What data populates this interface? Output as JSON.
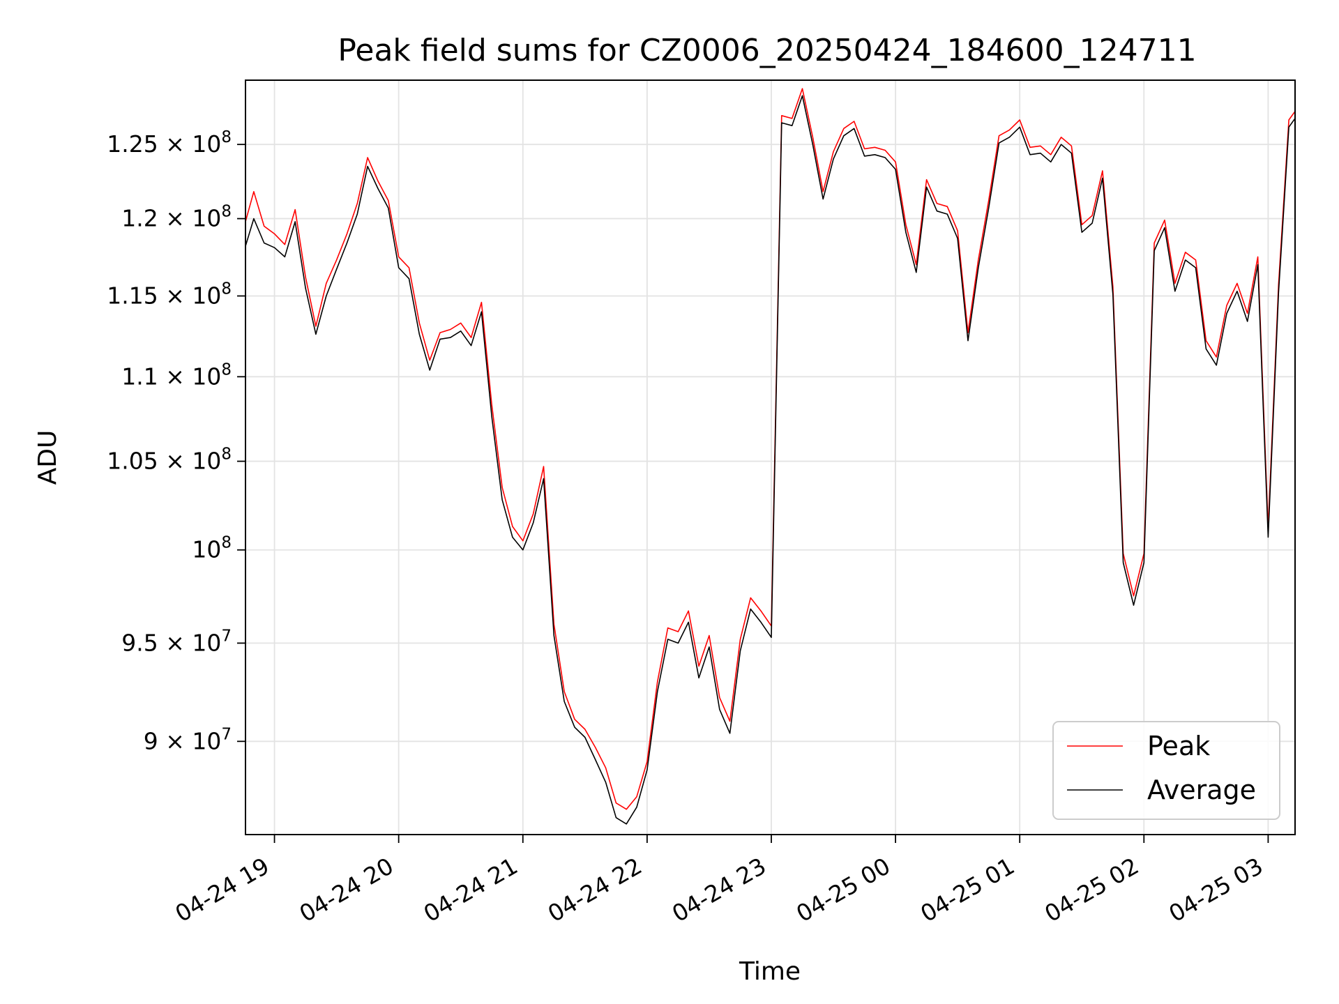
{
  "chart_data": {
    "type": "line",
    "title": "Peak field sums for CZ0006_20250424_184600_124711",
    "xlabel": "Time",
    "ylabel": "ADU",
    "y_scale": "log",
    "grid": true,
    "legend_placement": "lower-right",
    "xlim": [
      "2025-04-24 18:46",
      "2025-04-25 03:13"
    ],
    "ylim": [
      85500000,
      129500000
    ],
    "x_ticks": [
      {
        "value": "2025-04-24 19:00",
        "label": "04-24 19"
      },
      {
        "value": "2025-04-24 20:00",
        "label": "04-24 20"
      },
      {
        "value": "2025-04-24 21:00",
        "label": "04-24 21"
      },
      {
        "value": "2025-04-24 22:00",
        "label": "04-24 22"
      },
      {
        "value": "2025-04-24 23:00",
        "label": "04-24 23"
      },
      {
        "value": "2025-04-25 00:00",
        "label": "04-25 00"
      },
      {
        "value": "2025-04-25 01:00",
        "label": "04-25 01"
      },
      {
        "value": "2025-04-25 02:00",
        "label": "04-25 02"
      },
      {
        "value": "2025-04-25 03:00",
        "label": "04-25 03"
      }
    ],
    "y_ticks": [
      {
        "value": 90000000,
        "mantissa": "9",
        "exponent": "7",
        "label": "9 × 10^7"
      },
      {
        "value": 95000000,
        "mantissa": "9.5",
        "exponent": "7",
        "label": "9.5 × 10^7"
      },
      {
        "value": 100000000,
        "mantissa": "",
        "exponent": "8",
        "label": "10^8"
      },
      {
        "value": 105000000,
        "mantissa": "1.05",
        "exponent": "8",
        "label": "1.05 × 10^8"
      },
      {
        "value": 110000000,
        "mantissa": "1.1",
        "exponent": "8",
        "label": "1.1 × 10^8"
      },
      {
        "value": 115000000,
        "mantissa": "1.15",
        "exponent": "8",
        "label": "1.15 × 10^8"
      },
      {
        "value": 120000000,
        "mantissa": "1.2",
        "exponent": "8",
        "label": "1.2 × 10^8"
      },
      {
        "value": 125000000,
        "mantissa": "1.25",
        "exponent": "8",
        "label": "1.25 × 10^8"
      }
    ],
    "series": [
      {
        "name": "Peak",
        "color": "#ff0000",
        "points": [
          [
            "2025-04-24 18:46",
            119800000
          ],
          [
            "2025-04-24 18:50",
            121800000
          ],
          [
            "2025-04-24 18:55",
            119500000
          ],
          [
            "2025-04-24 19:00",
            119000000
          ],
          [
            "2025-04-24 19:05",
            118300000
          ],
          [
            "2025-04-24 19:10",
            120600000
          ],
          [
            "2025-04-24 19:15",
            116200000
          ],
          [
            "2025-04-24 19:20",
            113100000
          ],
          [
            "2025-04-24 19:25",
            115800000
          ],
          [
            "2025-04-24 19:30",
            117300000
          ],
          [
            "2025-04-24 19:35",
            119000000
          ],
          [
            "2025-04-24 19:40",
            121000000
          ],
          [
            "2025-04-24 19:45",
            124100000
          ],
          [
            "2025-04-24 19:50",
            122500000
          ],
          [
            "2025-04-24 19:55",
            121200000
          ],
          [
            "2025-04-24 20:00",
            117500000
          ],
          [
            "2025-04-24 20:05",
            116800000
          ],
          [
            "2025-04-24 20:10",
            113300000
          ],
          [
            "2025-04-24 20:15",
            111000000
          ],
          [
            "2025-04-24 20:20",
            112700000
          ],
          [
            "2025-04-24 20:25",
            112900000
          ],
          [
            "2025-04-24 20:30",
            113300000
          ],
          [
            "2025-04-24 20:35",
            112400000
          ],
          [
            "2025-04-24 20:40",
            114600000
          ],
          [
            "2025-04-24 20:45",
            108300000
          ],
          [
            "2025-04-24 20:50",
            103500000
          ],
          [
            "2025-04-24 20:55",
            101300000
          ],
          [
            "2025-04-24 21:00",
            100500000
          ],
          [
            "2025-04-24 21:05",
            102000000
          ],
          [
            "2025-04-24 21:10",
            104700000
          ],
          [
            "2025-04-24 21:15",
            96000000
          ],
          [
            "2025-04-24 21:20",
            92500000
          ],
          [
            "2025-04-24 21:25",
            91100000
          ],
          [
            "2025-04-24 21:30",
            90600000
          ],
          [
            "2025-04-24 21:35",
            89700000
          ],
          [
            "2025-04-24 21:40",
            88700000
          ],
          [
            "2025-04-24 21:45",
            87000000
          ],
          [
            "2025-04-24 21:50",
            86700000
          ],
          [
            "2025-04-24 21:55",
            87300000
          ],
          [
            "2025-04-24 22:00",
            89000000
          ],
          [
            "2025-04-24 22:05",
            93000000
          ],
          [
            "2025-04-24 22:10",
            95800000
          ],
          [
            "2025-04-24 22:15",
            95600000
          ],
          [
            "2025-04-24 22:20",
            96700000
          ],
          [
            "2025-04-24 22:25",
            93800000
          ],
          [
            "2025-04-24 22:30",
            95400000
          ],
          [
            "2025-04-24 22:35",
            92200000
          ],
          [
            "2025-04-24 22:40",
            91000000
          ],
          [
            "2025-04-24 22:45",
            95200000
          ],
          [
            "2025-04-24 22:50",
            97400000
          ],
          [
            "2025-04-24 22:55",
            96700000
          ],
          [
            "2025-04-24 23:00",
            95900000
          ],
          [
            "2025-04-24 23:05",
            127000000
          ],
          [
            "2025-04-24 23:10",
            126800000
          ],
          [
            "2025-04-24 23:15",
            128900000
          ],
          [
            "2025-04-24 23:20",
            125500000
          ],
          [
            "2025-04-24 23:25",
            121800000
          ],
          [
            "2025-04-24 23:30",
            124500000
          ],
          [
            "2025-04-24 23:35",
            126100000
          ],
          [
            "2025-04-24 23:40",
            126600000
          ],
          [
            "2025-04-24 23:45",
            124700000
          ],
          [
            "2025-04-24 23:50",
            124800000
          ],
          [
            "2025-04-24 23:55",
            124600000
          ],
          [
            "2025-04-25 00:00",
            123800000
          ],
          [
            "2025-04-25 00:05",
            119600000
          ],
          [
            "2025-04-25 00:10",
            117000000
          ],
          [
            "2025-04-25 00:15",
            122600000
          ],
          [
            "2025-04-25 00:20",
            121000000
          ],
          [
            "2025-04-25 00:25",
            120800000
          ],
          [
            "2025-04-25 00:30",
            119200000
          ],
          [
            "2025-04-25 00:35",
            112700000
          ],
          [
            "2025-04-25 00:40",
            117300000
          ],
          [
            "2025-04-25 00:45",
            121200000
          ],
          [
            "2025-04-25 00:50",
            125600000
          ],
          [
            "2025-04-25 00:55",
            126000000
          ],
          [
            "2025-04-25 01:00",
            126700000
          ],
          [
            "2025-04-25 01:05",
            124800000
          ],
          [
            "2025-04-25 01:10",
            124900000
          ],
          [
            "2025-04-25 01:15",
            124300000
          ],
          [
            "2025-04-25 01:20",
            125500000
          ],
          [
            "2025-04-25 01:25",
            124900000
          ],
          [
            "2025-04-25 01:30",
            119600000
          ],
          [
            "2025-04-25 01:35",
            120200000
          ],
          [
            "2025-04-25 01:40",
            123200000
          ],
          [
            "2025-04-25 01:45",
            115600000
          ],
          [
            "2025-04-25 01:50",
            99800000
          ],
          [
            "2025-04-25 01:55",
            97500000
          ],
          [
            "2025-04-25 02:00",
            99800000
          ],
          [
            "2025-04-25 02:05",
            118400000
          ],
          [
            "2025-04-25 02:10",
            119900000
          ],
          [
            "2025-04-25 02:15",
            115800000
          ],
          [
            "2025-04-25 02:20",
            117800000
          ],
          [
            "2025-04-25 02:25",
            117300000
          ],
          [
            "2025-04-25 02:30",
            112200000
          ],
          [
            "2025-04-25 02:35",
            111200000
          ],
          [
            "2025-04-25 02:40",
            114400000
          ],
          [
            "2025-04-25 02:45",
            115800000
          ],
          [
            "2025-04-25 02:50",
            113900000
          ],
          [
            "2025-04-25 02:55",
            117500000
          ],
          [
            "2025-04-25 03:00",
            101200000
          ],
          [
            "2025-04-25 03:05",
            115700000
          ],
          [
            "2025-04-25 03:10",
            126700000
          ],
          [
            "2025-04-25 03:13",
            127300000
          ]
        ]
      },
      {
        "name": "Average",
        "color": "#000000",
        "points": [
          [
            "2025-04-24 18:46",
            118200000
          ],
          [
            "2025-04-24 18:50",
            120000000
          ],
          [
            "2025-04-24 18:55",
            118400000
          ],
          [
            "2025-04-24 19:00",
            118100000
          ],
          [
            "2025-04-24 19:05",
            117500000
          ],
          [
            "2025-04-24 19:10",
            119800000
          ],
          [
            "2025-04-24 19:15",
            115500000
          ],
          [
            "2025-04-24 19:20",
            112600000
          ],
          [
            "2025-04-24 19:25",
            115000000
          ],
          [
            "2025-04-24 19:30",
            116700000
          ],
          [
            "2025-04-24 19:35",
            118400000
          ],
          [
            "2025-04-24 19:40",
            120300000
          ],
          [
            "2025-04-24 19:45",
            123500000
          ],
          [
            "2025-04-24 19:50",
            122000000
          ],
          [
            "2025-04-24 19:55",
            120700000
          ],
          [
            "2025-04-24 20:00",
            116800000
          ],
          [
            "2025-04-24 20:05",
            116100000
          ],
          [
            "2025-04-24 20:10",
            112600000
          ],
          [
            "2025-04-24 20:15",
            110400000
          ],
          [
            "2025-04-24 20:20",
            112300000
          ],
          [
            "2025-04-24 20:25",
            112400000
          ],
          [
            "2025-04-24 20:30",
            112800000
          ],
          [
            "2025-04-24 20:35",
            111900000
          ],
          [
            "2025-04-24 20:40",
            114000000
          ],
          [
            "2025-04-24 20:45",
            107600000
          ],
          [
            "2025-04-24 20:50",
            102800000
          ],
          [
            "2025-04-24 20:55",
            100700000
          ],
          [
            "2025-04-24 21:00",
            100000000
          ],
          [
            "2025-04-24 21:05",
            101500000
          ],
          [
            "2025-04-24 21:10",
            104000000
          ],
          [
            "2025-04-24 21:15",
            95400000
          ],
          [
            "2025-04-24 21:20",
            92000000
          ],
          [
            "2025-04-24 21:25",
            90700000
          ],
          [
            "2025-04-24 21:30",
            90200000
          ],
          [
            "2025-04-24 21:35",
            89100000
          ],
          [
            "2025-04-24 21:40",
            88000000
          ],
          [
            "2025-04-24 21:45",
            86300000
          ],
          [
            "2025-04-24 21:50",
            86000000
          ],
          [
            "2025-04-24 21:55",
            86800000
          ],
          [
            "2025-04-24 22:00",
            88600000
          ],
          [
            "2025-04-24 22:05",
            92500000
          ],
          [
            "2025-04-24 22:10",
            95200000
          ],
          [
            "2025-04-24 22:15",
            95000000
          ],
          [
            "2025-04-24 22:20",
            96100000
          ],
          [
            "2025-04-24 22:25",
            93200000
          ],
          [
            "2025-04-24 22:30",
            94800000
          ],
          [
            "2025-04-24 22:35",
            91600000
          ],
          [
            "2025-04-24 22:40",
            90400000
          ],
          [
            "2025-04-24 22:45",
            94600000
          ],
          [
            "2025-04-24 22:50",
            96800000
          ],
          [
            "2025-04-24 22:55",
            96100000
          ],
          [
            "2025-04-24 23:00",
            95300000
          ],
          [
            "2025-04-24 23:05",
            126500000
          ],
          [
            "2025-04-24 23:10",
            126300000
          ],
          [
            "2025-04-24 23:15",
            128400000
          ],
          [
            "2025-04-24 23:20",
            125000000
          ],
          [
            "2025-04-24 23:25",
            121300000
          ],
          [
            "2025-04-24 23:30",
            124000000
          ],
          [
            "2025-04-24 23:35",
            125600000
          ],
          [
            "2025-04-24 23:40",
            126100000
          ],
          [
            "2025-04-24 23:45",
            124200000
          ],
          [
            "2025-04-24 23:50",
            124300000
          ],
          [
            "2025-04-24 23:55",
            124100000
          ],
          [
            "2025-04-25 00:00",
            123300000
          ],
          [
            "2025-04-25 00:05",
            119100000
          ],
          [
            "2025-04-25 00:10",
            116500000
          ],
          [
            "2025-04-25 00:15",
            122100000
          ],
          [
            "2025-04-25 00:20",
            120500000
          ],
          [
            "2025-04-25 00:25",
            120300000
          ],
          [
            "2025-04-25 00:30",
            118700000
          ],
          [
            "2025-04-25 00:35",
            112200000
          ],
          [
            "2025-04-25 00:40",
            116800000
          ],
          [
            "2025-04-25 00:45",
            120700000
          ],
          [
            "2025-04-25 00:50",
            125100000
          ],
          [
            "2025-04-25 00:55",
            125500000
          ],
          [
            "2025-04-25 01:00",
            126200000
          ],
          [
            "2025-04-25 01:05",
            124300000
          ],
          [
            "2025-04-25 01:10",
            124400000
          ],
          [
            "2025-04-25 01:15",
            123800000
          ],
          [
            "2025-04-25 01:20",
            125000000
          ],
          [
            "2025-04-25 01:25",
            124400000
          ],
          [
            "2025-04-25 01:30",
            119100000
          ],
          [
            "2025-04-25 01:35",
            119700000
          ],
          [
            "2025-04-25 01:40",
            122700000
          ],
          [
            "2025-04-25 01:45",
            115100000
          ],
          [
            "2025-04-25 01:50",
            99300000
          ],
          [
            "2025-04-25 01:55",
            97000000
          ],
          [
            "2025-04-25 02:00",
            99300000
          ],
          [
            "2025-04-25 02:05",
            117900000
          ],
          [
            "2025-04-25 02:10",
            119400000
          ],
          [
            "2025-04-25 02:15",
            115300000
          ],
          [
            "2025-04-25 02:20",
            117300000
          ],
          [
            "2025-04-25 02:25",
            116800000
          ],
          [
            "2025-04-25 02:30",
            111700000
          ],
          [
            "2025-04-25 02:35",
            110700000
          ],
          [
            "2025-04-25 02:40",
            113900000
          ],
          [
            "2025-04-25 02:45",
            115300000
          ],
          [
            "2025-04-25 02:50",
            113400000
          ],
          [
            "2025-04-25 02:55",
            117000000
          ],
          [
            "2025-04-25 03:00",
            100700000
          ],
          [
            "2025-04-25 03:05",
            115200000
          ],
          [
            "2025-04-25 03:10",
            126200000
          ],
          [
            "2025-04-25 03:13",
            126800000
          ]
        ]
      }
    ]
  }
}
